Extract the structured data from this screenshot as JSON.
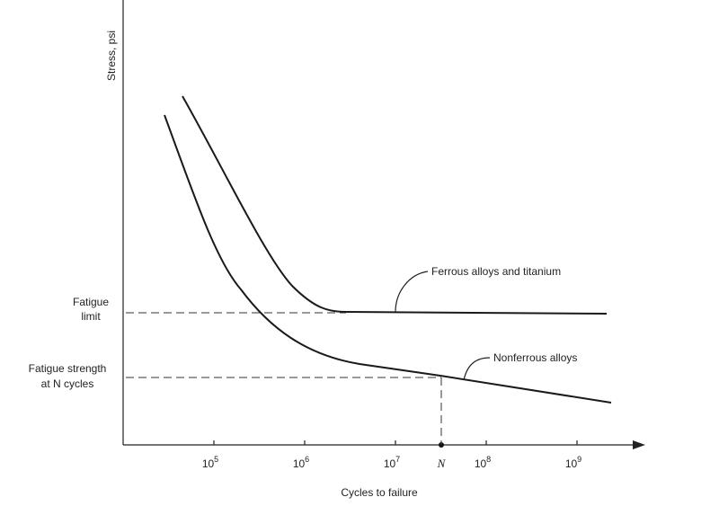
{
  "axes": {
    "y_label": "Stress, psi",
    "x_label": "Cycles to failure",
    "x_ticks": [
      {
        "base": "10",
        "exp": "5"
      },
      {
        "base": "10",
        "exp": "6"
      },
      {
        "base": "10",
        "exp": "7"
      },
      {
        "base": "10",
        "exp": "8"
      },
      {
        "base": "10",
        "exp": "9"
      }
    ],
    "n_tick": "N"
  },
  "left_labels": {
    "fatigue_limit": [
      "Fatigue",
      "limit"
    ],
    "fatigue_strength": [
      "Fatigue strength",
      "at N cycles"
    ]
  },
  "curves": {
    "ferrous": "Ferrous alloys and titanium",
    "nonferrous": "Nonferrous alloys"
  }
}
